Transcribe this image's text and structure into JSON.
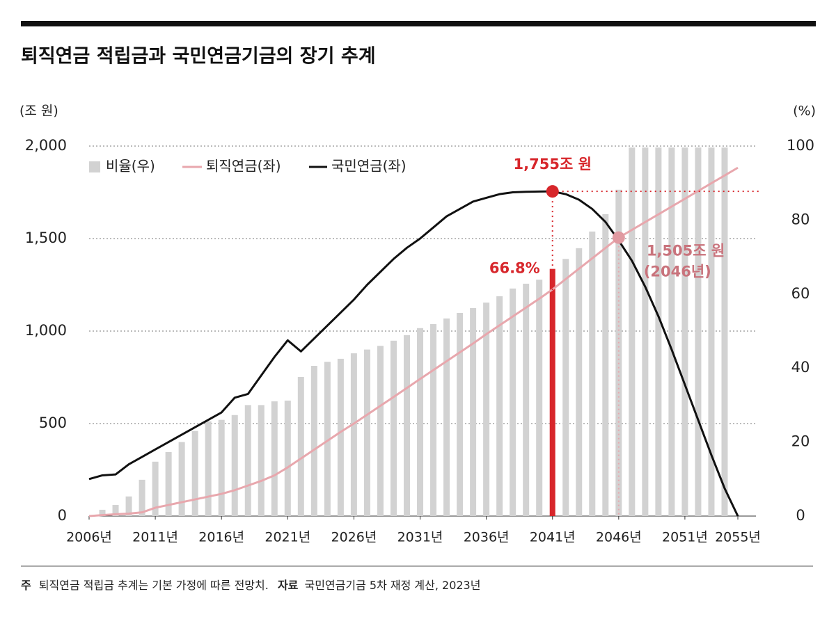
{
  "chart_data": {
    "type": "combo",
    "title": "퇴직연금 적립금과 국민연금기금의 장기 추계",
    "ylabel": "(조 원)",
    "y2label": "(%)",
    "x": [
      2006,
      2007,
      2008,
      2009,
      2010,
      2011,
      2012,
      2013,
      2014,
      2015,
      2016,
      2017,
      2018,
      2019,
      2020,
      2021,
      2022,
      2023,
      2024,
      2025,
      2026,
      2027,
      2028,
      2029,
      2030,
      2031,
      2032,
      2033,
      2034,
      2035,
      2036,
      2037,
      2038,
      2039,
      2040,
      2041,
      2042,
      2043,
      2044,
      2045,
      2046,
      2047,
      2048,
      2049,
      2050,
      2051,
      2052,
      2053,
      2054,
      2055
    ],
    "xlim": [
      2006,
      2055
    ],
    "xticks": [
      {
        "value": 2006,
        "label": "2006년"
      },
      {
        "value": 2011,
        "label": "2011년"
      },
      {
        "value": 2016,
        "label": "2016년"
      },
      {
        "value": 2021,
        "label": "2021년"
      },
      {
        "value": 2026,
        "label": "2026년"
      },
      {
        "value": 2031,
        "label": "2031년"
      },
      {
        "value": 2036,
        "label": "2036년"
      },
      {
        "value": 2041,
        "label": "2041년"
      },
      {
        "value": 2046,
        "label": "2046년"
      },
      {
        "value": 2051,
        "label": "2051년"
      },
      {
        "value": 2055,
        "label": "2055년"
      }
    ],
    "ylim": [
      0,
      2000
    ],
    "yticks": [
      0,
      500,
      {
        "value": 1000,
        "label": "1,000"
      },
      {
        "value": 1500,
        "label": "1,500"
      },
      {
        "value": 2000,
        "label": "2,000"
      }
    ],
    "y2lim": [
      0,
      100
    ],
    "y2ticks": [
      0,
      20,
      40,
      60,
      80,
      100
    ],
    "grid": true,
    "highlight_color": "#d7262b",
    "series": [
      {
        "name": "비율(우)",
        "kind": "bar",
        "axis": "y2",
        "color": "#d2d2d2",
        "values": [
          null,
          1.7,
          3,
          5.3,
          9.8,
          14.7,
          17.3,
          20,
          23,
          25.6,
          26,
          27.3,
          30,
          30,
          31,
          31.2,
          37.6,
          40.6,
          41.7,
          42.5,
          44,
          45,
          46,
          47.4,
          48.9,
          50.8,
          51.9,
          53.4,
          54.9,
          56.2,
          57.7,
          59.4,
          61.5,
          62.8,
          63.9,
          66.8,
          69.5,
          72.4,
          76.9,
          81.6,
          88.2,
          99.6,
          99.6,
          99.6,
          99.6,
          99.6,
          99.6,
          99.6,
          99.6,
          null
        ],
        "value_labels": [
          null,
          null,
          null,
          null,
          null,
          null,
          null,
          null,
          null,
          null,
          null,
          null,
          null,
          null,
          null,
          null,
          null,
          null,
          null,
          null,
          null,
          null,
          null,
          null,
          null,
          null,
          null,
          null,
          null,
          null,
          null,
          null,
          null,
          null,
          null,
          "66.8%",
          null,
          null,
          null,
          null,
          null,
          null,
          null,
          null,
          null,
          null,
          null,
          null,
          null,
          null
        ]
      },
      {
        "name": "퇴직연금(좌)",
        "kind": "line",
        "color": "#e8a7ad",
        "values": [
          0,
          5,
          10,
          13,
          20,
          45,
          60,
          75,
          90,
          105,
          120,
          140,
          165,
          190,
          220,
          263,
          311,
          359,
          407,
          455,
          500,
          548,
          596,
          644,
          692,
          741,
          789,
          837,
          885,
          933,
          983,
          1031,
          1079,
          1127,
          1175,
          1225,
          1281,
          1337,
          1393,
          1449,
          1505,
          1547,
          1589,
          1631,
          1673,
          1715,
          1757,
          1799,
          1841,
          1883
        ],
        "value_labels": [
          null,
          null,
          null,
          null,
          null,
          null,
          null,
          null,
          null,
          null,
          null,
          null,
          null,
          null,
          null,
          null,
          null,
          null,
          null,
          null,
          null,
          null,
          null,
          null,
          null,
          null,
          null,
          null,
          null,
          null,
          null,
          null,
          null,
          null,
          null,
          null,
          null,
          null,
          null,
          null,
          "1,505조 원",
          null,
          null,
          null,
          null,
          null,
          null,
          null,
          null,
          null
        ]
      },
      {
        "name": "국민연금(좌)",
        "kind": "line",
        "color": "#111111",
        "values": [
          200,
          220,
          225,
          280,
          320,
          360,
          400,
          440,
          480,
          520,
          560,
          640,
          660,
          760,
          860,
          950,
          890,
          960,
          1030,
          1100,
          1170,
          1250,
          1320,
          1390,
          1450,
          1500,
          1560,
          1620,
          1660,
          1700,
          1720,
          1740,
          1750,
          1753,
          1754,
          1755,
          1740,
          1710,
          1660,
          1590,
          1490,
          1380,
          1240,
          1080,
          900,
          710,
          520,
          330,
          150,
          0
        ],
        "value_labels": [
          null,
          null,
          null,
          null,
          null,
          null,
          null,
          null,
          null,
          null,
          null,
          null,
          null,
          null,
          null,
          null,
          null,
          null,
          null,
          null,
          null,
          null,
          null,
          null,
          null,
          null,
          null,
          null,
          null,
          null,
          null,
          null,
          null,
          null,
          null,
          "1,755조 원",
          null,
          null,
          null,
          null,
          null,
          null,
          null,
          null,
          null,
          null,
          null,
          null,
          null,
          null
        ]
      }
    ],
    "annotation": "(2046년)",
    "note_label": "주",
    "note": "퇴직연금 적립금 추계는 기본 가정에 따른 전망치.",
    "source_label": "자료",
    "source": "국민연금기금 5차 재정 계산, 2023년"
  }
}
